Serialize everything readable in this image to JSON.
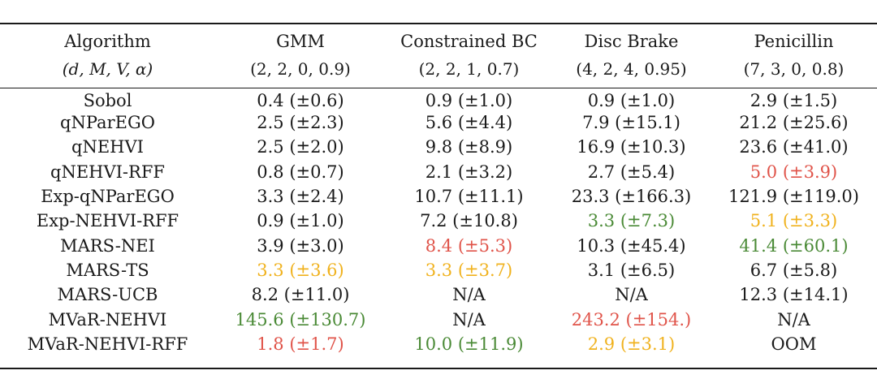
{
  "columns": [
    {
      "name": "Algorithm",
      "params": "(d, M, V, α)"
    },
    {
      "name": "GMM",
      "params": "(2, 2, 0, 0.9)"
    },
    {
      "name": "Constrained BC",
      "params": "(2, 2, 1, 0.7)"
    },
    {
      "name": "Disc Brake",
      "params": "(4, 2, 4, 0.95)"
    },
    {
      "name": "Penicillin",
      "params": "(7, 3, 0, 0.8)"
    }
  ],
  "rows": [
    {
      "algorithm": "Sobol",
      "cells": [
        {
          "text": "0.4 (±0.6)",
          "highlight": "none"
        },
        {
          "text": "0.9 (±1.0)",
          "highlight": "none"
        },
        {
          "text": "0.9 (±1.0)",
          "highlight": "none"
        },
        {
          "text": "2.9 (±1.5)",
          "highlight": "none"
        }
      ]
    },
    {
      "algorithm": "qNParEGO",
      "cells": [
        {
          "text": "2.5 (±2.3)",
          "highlight": "none"
        },
        {
          "text": "5.6 (±4.4)",
          "highlight": "none"
        },
        {
          "text": "7.9 (±15.1)",
          "highlight": "none"
        },
        {
          "text": "21.2 (±25.6)",
          "highlight": "none"
        }
      ]
    },
    {
      "algorithm": "qNEHVI",
      "cells": [
        {
          "text": "2.5 (±2.0)",
          "highlight": "none"
        },
        {
          "text": "9.8 (±8.9)",
          "highlight": "none"
        },
        {
          "text": "16.9 (±10.3)",
          "highlight": "none"
        },
        {
          "text": "23.6 (±41.0)",
          "highlight": "none"
        }
      ]
    },
    {
      "algorithm": "qNEHVI-RFF",
      "cells": [
        {
          "text": "0.8 (±0.7)",
          "highlight": "none"
        },
        {
          "text": "2.1 (±3.2)",
          "highlight": "none"
        },
        {
          "text": "2.7 (±5.4)",
          "highlight": "none"
        },
        {
          "text": "5.0 (±3.9)",
          "highlight": "red"
        }
      ]
    },
    {
      "algorithm": "Exp-qNParEGO",
      "cells": [
        {
          "text": "3.3 (±2.4)",
          "highlight": "none"
        },
        {
          "text": "10.7 (±11.1)",
          "highlight": "none"
        },
        {
          "text": "23.3 (±166.3)",
          "highlight": "none"
        },
        {
          "text": "121.9 (±119.0)",
          "highlight": "none"
        }
      ]
    },
    {
      "algorithm": "Exp-NEHVI-RFF",
      "cells": [
        {
          "text": "0.9 (±1.0)",
          "highlight": "none"
        },
        {
          "text": "7.2 (±10.8)",
          "highlight": "none"
        },
        {
          "text": "3.3 (±7.3)",
          "highlight": "green"
        },
        {
          "text": "5.1 (±3.3)",
          "highlight": "orange"
        }
      ]
    },
    {
      "algorithm": "MARS-NEI",
      "cells": [
        {
          "text": "3.9 (±3.0)",
          "highlight": "none"
        },
        {
          "text": "8.4 (±5.3)",
          "highlight": "red"
        },
        {
          "text": "10.3 (±45.4)",
          "highlight": "none"
        },
        {
          "text": "41.4 (±60.1)",
          "highlight": "green"
        }
      ]
    },
    {
      "algorithm": "MARS-TS",
      "cells": [
        {
          "text": "3.3 (±3.6)",
          "highlight": "orange"
        },
        {
          "text": "3.3 (±3.7)",
          "highlight": "orange"
        },
        {
          "text": "3.1 (±6.5)",
          "highlight": "none"
        },
        {
          "text": "6.7 (±5.8)",
          "highlight": "none"
        }
      ]
    },
    {
      "algorithm": "MARS-UCB",
      "cells": [
        {
          "text": "8.2 (±11.0)",
          "highlight": "none"
        },
        {
          "text": "N/A",
          "highlight": "none"
        },
        {
          "text": "N/A",
          "highlight": "none"
        },
        {
          "text": "12.3 (±14.1)",
          "highlight": "none"
        }
      ]
    },
    {
      "algorithm": "MVaR-NEHVI",
      "cells": [
        {
          "text": "145.6 (±130.7)",
          "highlight": "green"
        },
        {
          "text": "N/A",
          "highlight": "none"
        },
        {
          "text": "243.2 (±154.)",
          "highlight": "red"
        },
        {
          "text": "N/A",
          "highlight": "none"
        }
      ]
    },
    {
      "algorithm": "MVaR-NEHVI-RFF",
      "cells": [
        {
          "text": "1.8 (±1.7)",
          "highlight": "red"
        },
        {
          "text": "10.0 (±11.9)",
          "highlight": "green"
        },
        {
          "text": "2.9 (±3.1)",
          "highlight": "orange"
        },
        {
          "text": "OOM",
          "highlight": "none"
        }
      ]
    }
  ],
  "colors": {
    "red": "#e0544a",
    "orange": "#f0b21e",
    "green": "#4a8a36",
    "text": "#1a1a1a"
  }
}
